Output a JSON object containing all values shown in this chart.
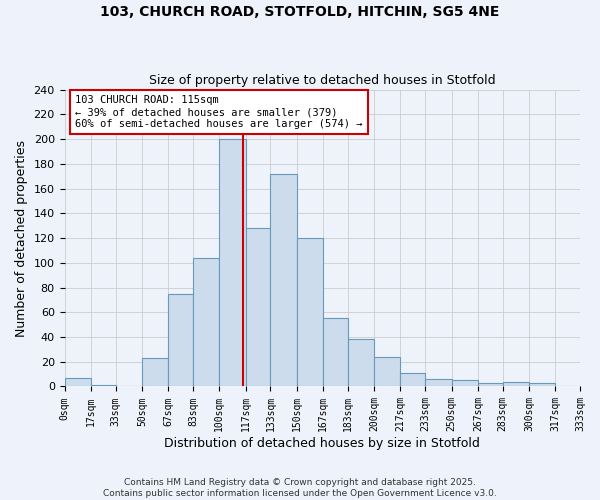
{
  "title": "103, CHURCH ROAD, STOTFOLD, HITCHIN, SG5 4NE",
  "subtitle": "Size of property relative to detached houses in Stotfold",
  "xlabel": "Distribution of detached houses by size in Stotfold",
  "ylabel": "Number of detached properties",
  "bin_edges": [
    0,
    17,
    33,
    50,
    67,
    83,
    100,
    117,
    133,
    150,
    167,
    183,
    200,
    217,
    233,
    250,
    267,
    283,
    300,
    317,
    333
  ],
  "bin_counts": [
    7,
    1,
    0,
    23,
    75,
    104,
    200,
    128,
    172,
    120,
    55,
    38,
    24,
    11,
    6,
    5,
    3,
    4,
    3,
    0
  ],
  "bar_facecolor": "#ccdcec",
  "bar_edgecolor": "#6699bb",
  "vline_x": 115,
  "vline_color": "#cc0000",
  "annotation_line1": "103 CHURCH ROAD: 115sqm",
  "annotation_line2": "← 39% of detached houses are smaller (379)",
  "annotation_line3": "60% of semi-detached houses are larger (574) →",
  "annotation_box_edgecolor": "#cc0000",
  "annotation_box_facecolor": "white",
  "tick_labels": [
    "0sqm",
    "17sqm",
    "33sqm",
    "50sqm",
    "67sqm",
    "83sqm",
    "100sqm",
    "117sqm",
    "133sqm",
    "150sqm",
    "167sqm",
    "183sqm",
    "200sqm",
    "217sqm",
    "233sqm",
    "250sqm",
    "267sqm",
    "283sqm",
    "300sqm",
    "317sqm",
    "333sqm"
  ],
  "ylim": [
    0,
    240
  ],
  "yticks": [
    0,
    20,
    40,
    60,
    80,
    100,
    120,
    140,
    160,
    180,
    200,
    220,
    240
  ],
  "grid_color": "#cccccc",
  "background_color": "#eef2fa",
  "footer1": "Contains HM Land Registry data © Crown copyright and database right 2025.",
  "footer2": "Contains public sector information licensed under the Open Government Licence v3.0."
}
